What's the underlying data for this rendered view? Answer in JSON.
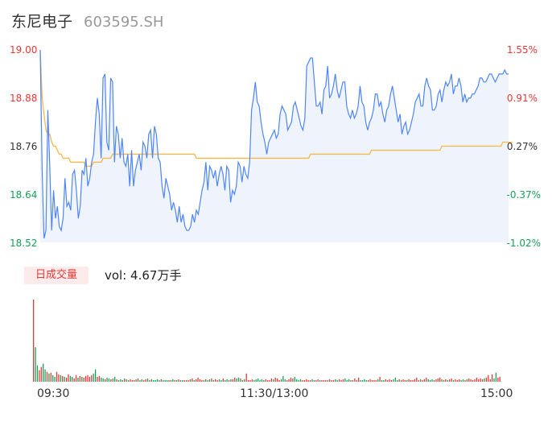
{
  "header": {
    "name": "东尼电子",
    "code": "603595.SH"
  },
  "colors": {
    "price_line": "#4f86f7",
    "avg_line": "#f5b84a",
    "up": "#e53935",
    "down": "#18a058",
    "neutral": "#333333"
  },
  "volume": {
    "badge": "日成交量",
    "text": "vol: 4.67万手"
  },
  "chart_data": [
    {
      "type": "line",
      "x_ticks": [
        "09:30",
        "11:30/13:00",
        "15:00"
      ],
      "y_ticks_left": [
        "19.00",
        "18.88",
        "18.76",
        "18.64",
        "18.52"
      ],
      "y_ticks_right": [
        "1.55%",
        "0.91%",
        "0.27%",
        "-0.37%",
        "-1.02%"
      ],
      "ylim": [
        18.52,
        19.0
      ],
      "session_minutes": 240,
      "series": [
        {
          "role": "price",
          "values": [
            19.0,
            18.7,
            18.53,
            18.55,
            18.85,
            18.71,
            18.55,
            18.65,
            18.58,
            18.61,
            18.56,
            18.55,
            18.58,
            18.68,
            18.61,
            18.62,
            18.6,
            18.69,
            18.7,
            18.65,
            18.58,
            18.61,
            18.7,
            18.69,
            18.73,
            18.66,
            18.68,
            18.72,
            18.74,
            18.82,
            18.88,
            18.84,
            18.73,
            18.93,
            18.94,
            18.77,
            18.75,
            18.93,
            18.92,
            18.72,
            18.81,
            18.79,
            18.73,
            18.78,
            18.72,
            18.71,
            18.74,
            18.66,
            18.75,
            18.66,
            18.7,
            18.72,
            18.74,
            18.7,
            18.77,
            18.76,
            18.73,
            18.79,
            18.8,
            18.73,
            18.81,
            18.79,
            18.73,
            18.72,
            18.66,
            18.63,
            18.68,
            18.66,
            18.64,
            18.6,
            18.62,
            18.6,
            18.57,
            18.61,
            18.57,
            18.59,
            18.56,
            18.55,
            18.55,
            18.56,
            18.59,
            18.57,
            18.6,
            18.59,
            18.62,
            18.65,
            18.67,
            18.72,
            18.65,
            18.71,
            18.7,
            18.68,
            18.7,
            18.66,
            18.69,
            18.71,
            18.69,
            18.65,
            18.71,
            18.7,
            18.62,
            18.65,
            18.64,
            18.66,
            18.72,
            18.71,
            18.67,
            18.71,
            18.69,
            18.68,
            18.72,
            18.85,
            18.88,
            18.92,
            18.87,
            18.86,
            18.82,
            18.79,
            18.77,
            18.74,
            18.77,
            18.78,
            18.79,
            18.8,
            18.78,
            18.79,
            18.84,
            18.86,
            18.85,
            18.84,
            18.8,
            18.81,
            18.82,
            18.86,
            18.87,
            18.85,
            18.83,
            18.81,
            18.8,
            18.83,
            18.96,
            18.97,
            18.98,
            18.98,
            18.92,
            18.86,
            18.86,
            18.87,
            18.84,
            18.9,
            18.91,
            18.96,
            18.88,
            18.89,
            18.91,
            18.94,
            18.9,
            18.88,
            18.9,
            18.92,
            18.92,
            18.86,
            18.84,
            18.83,
            18.85,
            18.83,
            18.84,
            18.86,
            18.91,
            18.87,
            18.86,
            18.82,
            18.8,
            18.82,
            18.83,
            18.85,
            18.89,
            18.89,
            18.86,
            18.87,
            18.84,
            18.82,
            18.85,
            18.86,
            18.89,
            18.91,
            18.88,
            18.85,
            18.82,
            18.84,
            18.79,
            18.81,
            18.82,
            18.79,
            18.8,
            18.82,
            18.84,
            18.87,
            18.88,
            18.89,
            18.86,
            18.86,
            18.91,
            18.93,
            18.91,
            18.9,
            18.85,
            18.85,
            18.86,
            18.89,
            18.9,
            18.87,
            18.9,
            18.92,
            18.91,
            18.92,
            18.94,
            18.89,
            18.91,
            18.91,
            18.93,
            18.91,
            18.87,
            18.89,
            18.87,
            18.88,
            18.88,
            18.89,
            18.89,
            18.9,
            18.91,
            18.93,
            18.93,
            18.92,
            18.92,
            18.93,
            18.94,
            18.94,
            18.93,
            18.92,
            18.93,
            18.94,
            18.94,
            18.94,
            18.95,
            18.94,
            18.94
          ]
        },
        {
          "role": "average",
          "values": [
            19.0,
            18.88,
            18.84,
            18.8,
            18.79,
            18.79,
            18.77,
            18.76,
            18.76,
            18.75,
            18.74,
            18.74,
            18.73,
            18.73,
            18.73,
            18.73,
            18.72,
            18.72,
            18.72,
            18.72,
            18.72,
            18.72,
            18.72,
            18.72,
            18.71,
            18.71,
            18.71,
            18.71,
            18.72,
            18.72,
            18.72,
            18.72,
            18.72,
            18.73,
            18.73,
            18.73,
            18.73,
            18.73,
            18.74,
            18.74,
            18.74,
            18.74,
            18.74,
            18.74,
            18.74,
            18.74,
            18.74,
            18.74,
            18.74,
            18.74,
            18.74,
            18.74,
            18.74,
            18.74,
            18.74,
            18.74,
            18.74,
            18.74,
            18.74,
            18.74,
            18.74,
            18.74,
            18.74,
            18.74,
            18.74,
            18.74,
            18.74,
            18.74,
            18.74,
            18.74,
            18.74,
            18.74,
            18.74,
            18.74,
            18.74,
            18.74,
            18.74,
            18.74,
            18.74,
            18.74,
            18.74,
            18.74,
            18.73,
            18.73,
            18.73,
            18.73,
            18.73,
            18.73,
            18.73,
            18.73,
            18.73,
            18.73,
            18.73,
            18.73,
            18.73,
            18.73,
            18.73,
            18.73,
            18.73,
            18.73,
            18.73,
            18.73,
            18.73,
            18.73,
            18.73,
            18.73,
            18.73,
            18.73,
            18.73,
            18.73,
            18.73,
            18.73,
            18.73,
            18.73,
            18.73,
            18.73,
            18.73,
            18.73,
            18.73,
            18.73,
            18.73,
            18.73,
            18.73,
            18.73,
            18.73,
            18.73,
            18.73,
            18.73,
            18.73,
            18.73,
            18.73,
            18.73,
            18.73,
            18.73,
            18.73,
            18.73,
            18.73,
            18.73,
            18.73,
            18.73,
            18.73,
            18.73,
            18.74,
            18.74,
            18.74,
            18.74,
            18.74,
            18.74,
            18.74,
            18.74,
            18.74,
            18.74,
            18.74,
            18.74,
            18.74,
            18.74,
            18.74,
            18.74,
            18.74,
            18.74,
            18.74,
            18.74,
            18.74,
            18.74,
            18.74,
            18.74,
            18.74,
            18.74,
            18.74,
            18.74,
            18.74,
            18.74,
            18.74,
            18.74,
            18.75,
            18.75,
            18.75,
            18.75,
            18.75,
            18.75,
            18.75,
            18.75,
            18.75,
            18.75,
            18.75,
            18.75,
            18.75,
            18.75,
            18.75,
            18.75,
            18.75,
            18.75,
            18.75,
            18.75,
            18.75,
            18.75,
            18.75,
            18.75,
            18.75,
            18.75,
            18.75,
            18.75,
            18.75,
            18.75,
            18.75,
            18.75,
            18.75,
            18.75,
            18.75,
            18.75,
            18.75,
            18.76,
            18.76,
            18.76,
            18.76,
            18.76,
            18.76,
            18.76,
            18.76,
            18.76,
            18.76,
            18.76,
            18.76,
            18.76,
            18.76,
            18.76,
            18.76,
            18.76,
            18.76,
            18.76,
            18.76,
            18.76,
            18.76,
            18.76,
            18.76,
            18.76,
            18.76,
            18.76,
            18.76,
            18.76,
            18.76,
            18.76,
            18.76,
            18.77,
            18.77,
            18.77,
            18.77,
            18.77,
            18.77
          ]
        }
      ]
    },
    {
      "type": "bar",
      "series": [
        {
          "role": "volume",
          "values": [
            100,
            42,
            20,
            14,
            18,
            22,
            15,
            12,
            10,
            11,
            8,
            6,
            12,
            9,
            8,
            7,
            6,
            5,
            9,
            7,
            6,
            4,
            8,
            5,
            7,
            6,
            5,
            7,
            8,
            6,
            8,
            10,
            15,
            6,
            7,
            5,
            4,
            3,
            5,
            4,
            3,
            4,
            6,
            3,
            2,
            3,
            2,
            4,
            3,
            2,
            3,
            2,
            2,
            3,
            4,
            2,
            3,
            2,
            3,
            4,
            2,
            3,
            2,
            2,
            3,
            2,
            3,
            2,
            2,
            2,
            2,
            2,
            3,
            2,
            2,
            3,
            2,
            2,
            2,
            2,
            2,
            3,
            4,
            2,
            3,
            5,
            3,
            2,
            2,
            3,
            2,
            3,
            4,
            2,
            3,
            2,
            3,
            2,
            4,
            2,
            3,
            2,
            3,
            3,
            5,
            4,
            5,
            4,
            2,
            3,
            10,
            2,
            2,
            3,
            2,
            3,
            4,
            2,
            3,
            2,
            3,
            2,
            2,
            4,
            3,
            5,
            4,
            2,
            3,
            7,
            3,
            2,
            3,
            5,
            4,
            6,
            3,
            2,
            3,
            2,
            2,
            3,
            2,
            2,
            3,
            2,
            2,
            3,
            2,
            2,
            2,
            2,
            2,
            3,
            2,
            2,
            3,
            2,
            3,
            2,
            3,
            4,
            2,
            3,
            2,
            2,
            4,
            2,
            5,
            2,
            2,
            3,
            2,
            2,
            3,
            2,
            2,
            2,
            3,
            6,
            2,
            2,
            3,
            2,
            3,
            2,
            3,
            5,
            2,
            3,
            2,
            3,
            2,
            2,
            3,
            2,
            2,
            3,
            5,
            2,
            3,
            2,
            3,
            5,
            3,
            2,
            3,
            2,
            3,
            4,
            5,
            3,
            2,
            3,
            2,
            3,
            4,
            2,
            3,
            2,
            3,
            2,
            3,
            2,
            3,
            4,
            3,
            2,
            3,
            5,
            3,
            4,
            3,
            4,
            5,
            8,
            3,
            9,
            4,
            11,
            5,
            6
          ]
        }
      ]
    }
  ]
}
